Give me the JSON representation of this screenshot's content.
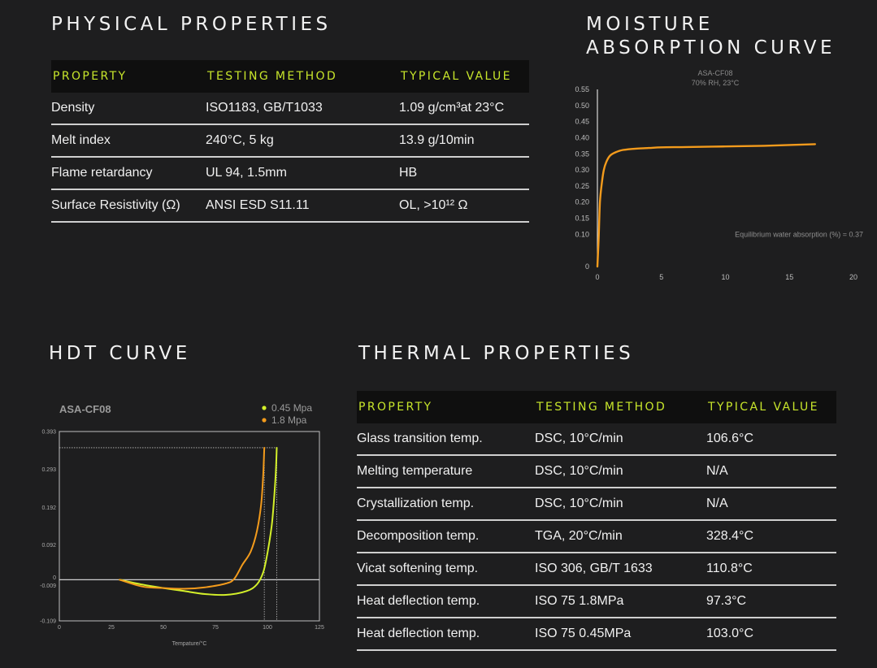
{
  "physical": {
    "title": "PHYSICAL PROPERTIES",
    "headers": [
      "PROPERTY",
      "TESTING METHOD",
      "TYPICAL VALUE"
    ],
    "rows": [
      [
        "Density",
        "ISO1183, GB/T1033",
        "1.09 g/cm³at 23°C"
      ],
      [
        "Melt index",
        "240°C, 5 kg",
        "13.9 g/10min"
      ],
      [
        "Flame retardancy",
        "UL 94, 1.5mm",
        "HB"
      ],
      [
        "Surface Resistivity (Ω)",
        "ANSI ESD S11.11",
        "OL, >10¹² Ω"
      ]
    ]
  },
  "moisture": {
    "title_line1": "MOISTURE",
    "title_line2": "ABSORPTION CURVE"
  },
  "hdt": {
    "title": "HDT CURVE"
  },
  "thermal": {
    "title": "THERMAL PROPERTIES",
    "headers": [
      "PROPERTY",
      "TESTING METHOD",
      "TYPICAL VALUE"
    ],
    "rows": [
      [
        "Glass transition temp.",
        "DSC, 10°C/min",
        "106.6°C"
      ],
      [
        "Melting temperature",
        "DSC, 10°C/min",
        "N/A"
      ],
      [
        "Crystallization temp.",
        "DSC, 10°C/min",
        "N/A"
      ],
      [
        "Decomposition temp.",
        "TGA, 20°C/min",
        "328.4°C"
      ],
      [
        "Vicat softening temp.",
        "ISO 306, GB/T 1633",
        "110.8°C"
      ],
      [
        "Heat deflection temp.",
        "ISO 75 1.8MPa",
        "97.3°C"
      ],
      [
        "Heat deflection temp.",
        "ISO 75 0.45MPa",
        "103.0°C"
      ]
    ]
  },
  "colors": {
    "accent": "#c7e52b",
    "orange": "#f39b1c",
    "yellow": "#d4f02a",
    "background": "#1e1e1f"
  },
  "chart_data": [
    {
      "type": "line",
      "title": "ASA-CF08",
      "subtitle": "70% RH, 23°C",
      "xlabel": "",
      "ylabel": "",
      "xlim": [
        0,
        20
      ],
      "ylim": [
        0,
        0.55
      ],
      "xticks": [
        0,
        5,
        10,
        15,
        20
      ],
      "xtick_labels": [
        "0",
        "5",
        "10",
        "15",
        "20"
      ],
      "yticks": [
        0,
        0.1,
        0.15,
        0.2,
        0.25,
        0.3,
        0.35,
        0.4,
        0.45,
        0.5,
        0.55
      ],
      "ytick_labels": [
        "0",
        "0.10",
        "0.15",
        "0.20",
        "0.25",
        "0.30",
        "0.35",
        "0.40",
        "0.45",
        "0.50",
        "0.55"
      ],
      "annotation": "Equilibrium water absorption (%) = 0.37",
      "grid": false,
      "series": [
        {
          "color": "#f39b1c",
          "x": [
            0,
            0.1,
            0.2,
            0.35,
            0.5,
            0.7,
            1.0,
            1.5,
            2.0,
            3.0,
            4.0,
            5.0,
            7.0,
            10.0,
            13.0,
            17.0
          ],
          "y": [
            0,
            0.09,
            0.2,
            0.26,
            0.3,
            0.325,
            0.345,
            0.356,
            0.362,
            0.366,
            0.368,
            0.37,
            0.371,
            0.373,
            0.375,
            0.38
          ]
        }
      ]
    },
    {
      "type": "line",
      "title": "ASA-CF08",
      "xlabel": "Tempature/°C",
      "ylabel": "",
      "xlim": [
        0,
        125
      ],
      "ylim": [
        -0.109,
        0.393
      ],
      "xticks": [
        0,
        25,
        50,
        75,
        100,
        125
      ],
      "xtick_labels": [
        "0",
        "25",
        "50",
        "75",
        "100",
        "125"
      ],
      "yticks": [
        0.393,
        0.293,
        0.192,
        0.092,
        0,
        -0.009,
        -0.109
      ],
      "ytick_labels": [
        "0.393",
        "0.293",
        "0.192",
        "0.092",
        "0",
        "-0.009",
        "-0.109"
      ],
      "legend_position": "top-right",
      "grid": false,
      "series": [
        {
          "name": "0.45 Mpa",
          "color": "#d4f02a",
          "x": [
            29,
            40,
            50,
            60,
            70,
            80,
            90,
            95,
            98,
            100,
            102,
            103,
            104,
            104.5
          ],
          "y": [
            0,
            -0.013,
            -0.022,
            -0.03,
            -0.038,
            -0.04,
            -0.03,
            -0.012,
            0.02,
            0.07,
            0.14,
            0.2,
            0.28,
            0.35
          ]
        },
        {
          "name": "1.8 Mpa",
          "color": "#f39b1c",
          "x": [
            29,
            40,
            50,
            60,
            70,
            80,
            84,
            88,
            92,
            95,
            97,
            98,
            98.5
          ],
          "y": [
            0,
            -0.018,
            -0.022,
            -0.024,
            -0.02,
            -0.01,
            0.002,
            0.04,
            0.075,
            0.13,
            0.2,
            0.28,
            0.35
          ]
        }
      ],
      "reference_lines": {
        "y": 0.35,
        "x": [
          98.5,
          104.5
        ]
      }
    }
  ]
}
